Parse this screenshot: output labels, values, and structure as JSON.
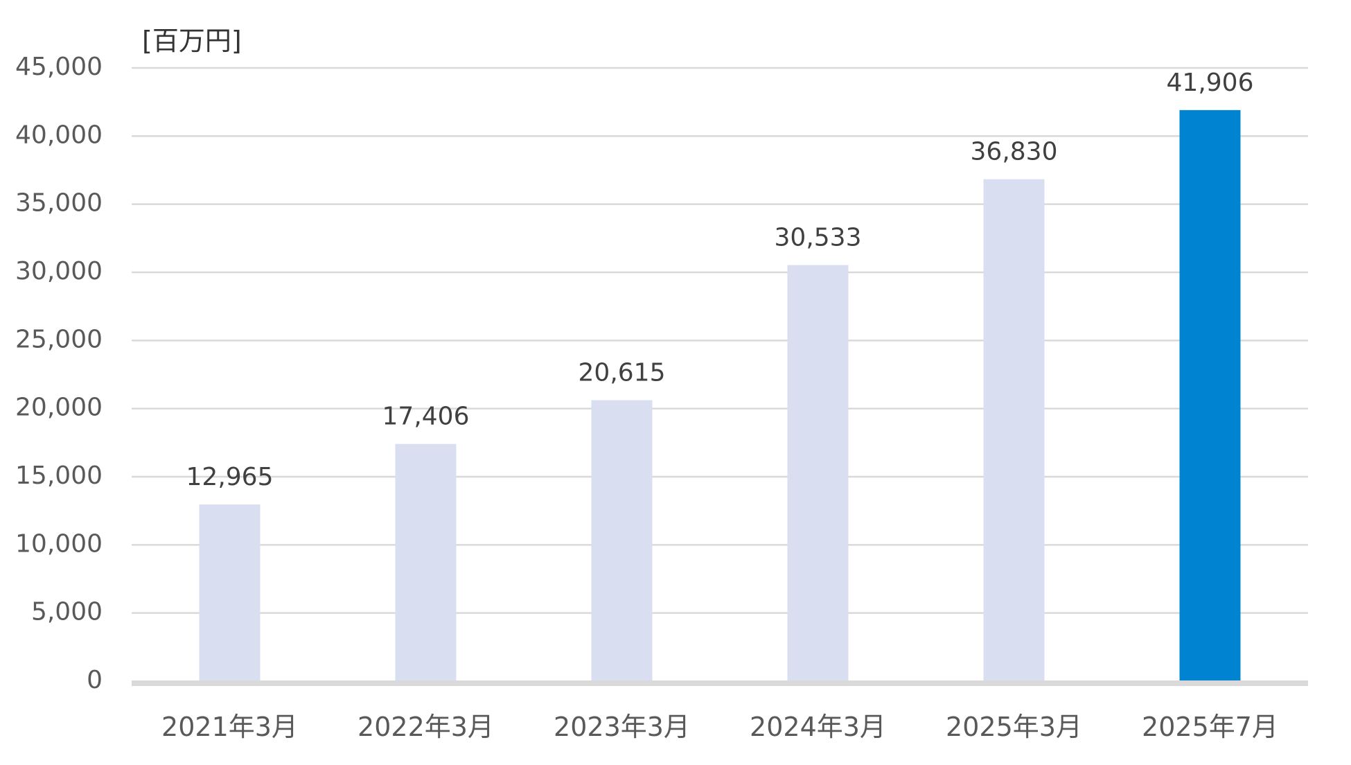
{
  "chart_data": {
    "type": "bar",
    "title": "",
    "unit_label": "[百万円]",
    "xlabel": "",
    "ylabel": "",
    "categories": [
      "2021年3月",
      "2022年3月",
      "2023年3月",
      "2024年3月",
      "2025年3月",
      "2025年7月"
    ],
    "values": [
      12965,
      17406,
      20615,
      30533,
      36830,
      41906
    ],
    "data_labels": [
      "12,965",
      "17,406",
      "20,615",
      "30,533",
      "36,830",
      "41,906"
    ],
    "yticks": [
      0,
      5000,
      10000,
      15000,
      20000,
      25000,
      30000,
      35000,
      40000,
      45000
    ],
    "ytick_labels": [
      "0",
      "5,000",
      "10,000",
      "15,000",
      "20,000",
      "25,000",
      "30,000",
      "35,000",
      "40,000",
      "45,000"
    ],
    "ylim": [
      0,
      45000
    ],
    "grid": true,
    "legend": "none",
    "colors": {
      "bar_default": "#d9dff0",
      "bar_highlight": "#0084d1",
      "gridline": "#d9d9d9",
      "baseline": "#d9d9d9"
    },
    "highlight_categories": [
      "2025年7月"
    ]
  }
}
